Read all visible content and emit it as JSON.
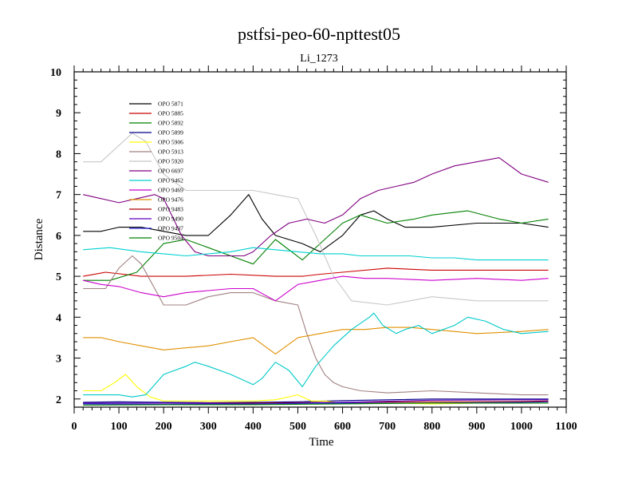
{
  "chart_data": {
    "type": "line",
    "title": "pstfsi-peo-60-npttest05",
    "subtitle": "Li_1273",
    "xlabel": "Time",
    "ylabel": "Distance",
    "xlim": [
      0,
      1100
    ],
    "ylim": [
      1.8,
      10
    ],
    "x_ticks": [
      "0",
      "100",
      "200",
      "300",
      "400",
      "500",
      "600",
      "700",
      "800",
      "900",
      "1000",
      "1100"
    ],
    "y_ticks": [
      "2",
      "3",
      "4",
      "5",
      "6",
      "7",
      "8",
      "9",
      "10"
    ],
    "legend_position": "top-left",
    "series": [
      {
        "name": "OPO 5871",
        "color": "#000000",
        "x": [
          20,
          60,
          100,
          150,
          200,
          250,
          300,
          350,
          390,
          420,
          450,
          480,
          510,
          550,
          600,
          640,
          670,
          700,
          740,
          800,
          900,
          1000,
          1060
        ],
        "y": [
          6.1,
          6.1,
          6.2,
          6.2,
          6.1,
          6.0,
          6.0,
          6.5,
          7.0,
          6.4,
          6.0,
          5.9,
          5.8,
          5.6,
          6.0,
          6.5,
          6.6,
          6.4,
          6.2,
          6.2,
          6.3,
          6.3,
          6.2
        ]
      },
      {
        "name": "OPO 5885",
        "color": "#cc0000",
        "x": [
          20,
          70,
          150,
          250,
          350,
          450,
          510,
          550,
          600,
          700,
          800,
          900,
          1000,
          1060
        ],
        "y": [
          5.0,
          5.1,
          5.0,
          5.0,
          5.05,
          5.0,
          5.0,
          5.05,
          5.1,
          5.2,
          5.15,
          5.15,
          5.15,
          5.15
        ]
      },
      {
        "name": "OPO 5892",
        "color": "#008000",
        "x": [
          20,
          80,
          140,
          200,
          250,
          300,
          350,
          400,
          450,
          510,
          560,
          600,
          640,
          700,
          760,
          800,
          880,
          950,
          1000,
          1060
        ],
        "y": [
          4.9,
          4.9,
          5.1,
          5.8,
          5.9,
          5.7,
          5.5,
          5.3,
          5.9,
          5.4,
          5.9,
          6.3,
          6.5,
          6.3,
          6.4,
          6.5,
          6.6,
          6.4,
          6.3,
          6.4
        ]
      },
      {
        "name": "OPO 5899",
        "color": "#00008b",
        "x": [
          20,
          100,
          200,
          300,
          400,
          500,
          600,
          700,
          800,
          900,
          1000,
          1060
        ],
        "y": [
          1.92,
          1.93,
          1.92,
          1.91,
          1.92,
          1.93,
          1.96,
          1.98,
          2.0,
          2.0,
          2.0,
          2.0
        ]
      },
      {
        "name": "OPO 5906",
        "color": "#ffff00",
        "x": [
          20,
          60,
          90,
          115,
          140,
          170,
          200,
          300,
          400,
          450,
          500,
          530,
          560,
          600,
          700,
          800,
          900,
          1000,
          1060
        ],
        "y": [
          2.2,
          2.2,
          2.4,
          2.6,
          2.3,
          2.05,
          1.95,
          1.95,
          1.95,
          1.98,
          2.1,
          1.95,
          1.95,
          1.9,
          1.9,
          1.88,
          1.9,
          1.9,
          1.9
        ]
      },
      {
        "name": "OPO 5913",
        "color": "#a08080",
        "x": [
          20,
          70,
          100,
          130,
          150,
          180,
          200,
          250,
          300,
          350,
          400,
          450,
          500,
          520,
          540,
          560,
          580,
          600,
          640,
          700,
          800,
          900,
          1000,
          1060
        ],
        "y": [
          4.7,
          4.7,
          5.2,
          5.5,
          5.3,
          4.7,
          4.3,
          4.3,
          4.5,
          4.6,
          4.6,
          4.4,
          4.3,
          3.6,
          3.0,
          2.6,
          2.4,
          2.3,
          2.2,
          2.15,
          2.2,
          2.15,
          2.1,
          2.1
        ]
      },
      {
        "name": "OPO 5920",
        "color": "#c8c8c8",
        "x": [
          20,
          60,
          100,
          130,
          160,
          200,
          250,
          300,
          350,
          400,
          450,
          500,
          540,
          580,
          620,
          700,
          800,
          900,
          1000,
          1060
        ],
        "y": [
          7.8,
          7.8,
          8.2,
          8.5,
          8.3,
          7.5,
          7.1,
          7.1,
          7.1,
          7.1,
          7.0,
          6.9,
          6.0,
          5.0,
          4.4,
          4.3,
          4.5,
          4.4,
          4.4,
          4.4
        ]
      },
      {
        "name": "OPO 6697",
        "color": "#800080",
        "x": [
          20,
          60,
          100,
          140,
          180,
          200,
          240,
          270,
          300,
          340,
          380,
          400,
          440,
          480,
          520,
          560,
          600,
          640,
          680,
          720,
          760,
          800,
          850,
          900,
          950,
          1000,
          1060
        ],
        "y": [
          7.0,
          6.9,
          6.8,
          6.9,
          7.0,
          6.9,
          6.0,
          5.6,
          5.5,
          5.5,
          5.5,
          5.6,
          6.0,
          6.3,
          6.4,
          6.3,
          6.5,
          6.9,
          7.1,
          7.2,
          7.3,
          7.5,
          7.7,
          7.8,
          7.9,
          7.5,
          7.3
        ]
      },
      {
        "name": "OPO 9462",
        "color": "#00d0d0",
        "x": [
          20,
          80,
          150,
          200,
          250,
          300,
          350,
          400,
          450,
          500,
          550,
          600,
          640,
          670,
          700,
          750,
          800,
          850,
          900,
          1000,
          1060
        ],
        "y": [
          5.65,
          5.7,
          5.6,
          5.55,
          5.5,
          5.55,
          5.6,
          5.7,
          5.65,
          5.6,
          5.55,
          5.55,
          5.5,
          5.5,
          5.5,
          5.5,
          5.45,
          5.45,
          5.4,
          5.4,
          5.4
        ]
      },
      {
        "name": "OPO 9469",
        "color": "#cc00cc",
        "x": [
          20,
          60,
          100,
          150,
          200,
          250,
          300,
          350,
          400,
          450,
          500,
          550,
          600,
          650,
          700,
          800,
          900,
          1000,
          1060
        ],
        "y": [
          4.9,
          4.8,
          4.75,
          4.6,
          4.5,
          4.6,
          4.65,
          4.7,
          4.7,
          4.4,
          4.8,
          4.9,
          5.0,
          4.95,
          4.95,
          4.9,
          4.95,
          4.9,
          4.95
        ]
      },
      {
        "name": "OPO 9476",
        "color": "#e09000",
        "x": [
          20,
          60,
          100,
          150,
          200,
          250,
          300,
          350,
          400,
          450,
          500,
          550,
          600,
          650,
          700,
          750,
          800,
          850,
          900,
          1000,
          1060
        ],
        "y": [
          3.5,
          3.5,
          3.4,
          3.3,
          3.2,
          3.25,
          3.3,
          3.4,
          3.5,
          3.1,
          3.5,
          3.6,
          3.7,
          3.7,
          3.75,
          3.75,
          3.7,
          3.65,
          3.6,
          3.65,
          3.7
        ]
      },
      {
        "name": "OPO 9483",
        "color": "#b00000",
        "x": [
          20,
          200,
          400,
          600,
          800,
          1000,
          1060
        ],
        "y": [
          1.9,
          1.9,
          1.9,
          1.92,
          1.93,
          1.94,
          1.95
        ]
      },
      {
        "name": "OPO 9490",
        "color": "#6000c0",
        "x": [
          20,
          200,
          400,
          600,
          800,
          1000,
          1060
        ],
        "y": [
          1.9,
          1.9,
          1.88,
          1.92,
          1.97,
          1.98,
          1.98
        ]
      },
      {
        "name": "OPO 9497",
        "color": "#2020d0",
        "x": [
          20,
          200,
          400,
          600,
          800,
          1000,
          1060
        ],
        "y": [
          1.88,
          1.87,
          1.88,
          1.9,
          1.9,
          1.92,
          1.93
        ]
      },
      {
        "name": "OPO 9504",
        "color": "#008000",
        "x": [
          20,
          200,
          400,
          600,
          800,
          1000,
          1060
        ],
        "y": [
          1.85,
          1.86,
          1.86,
          1.88,
          1.9,
          1.9,
          1.9
        ]
      },
      {
        "name": "",
        "color": "#00c8c8",
        "x": [
          20,
          60,
          100,
          130,
          160,
          200,
          250,
          270,
          300,
          350,
          400,
          420,
          450,
          480,
          510,
          540,
          580,
          620,
          660,
          670,
          690,
          720,
          740,
          770,
          800,
          850,
          880,
          920,
          960,
          1000,
          1060
        ],
        "y": [
          2.1,
          2.1,
          2.1,
          2.05,
          2.1,
          2.6,
          2.8,
          2.9,
          2.8,
          2.6,
          2.35,
          2.5,
          2.9,
          2.7,
          2.3,
          2.8,
          3.3,
          3.7,
          4.0,
          4.1,
          3.8,
          3.6,
          3.7,
          3.8,
          3.6,
          3.8,
          4.0,
          3.9,
          3.7,
          3.6,
          3.65
        ]
      }
    ]
  }
}
